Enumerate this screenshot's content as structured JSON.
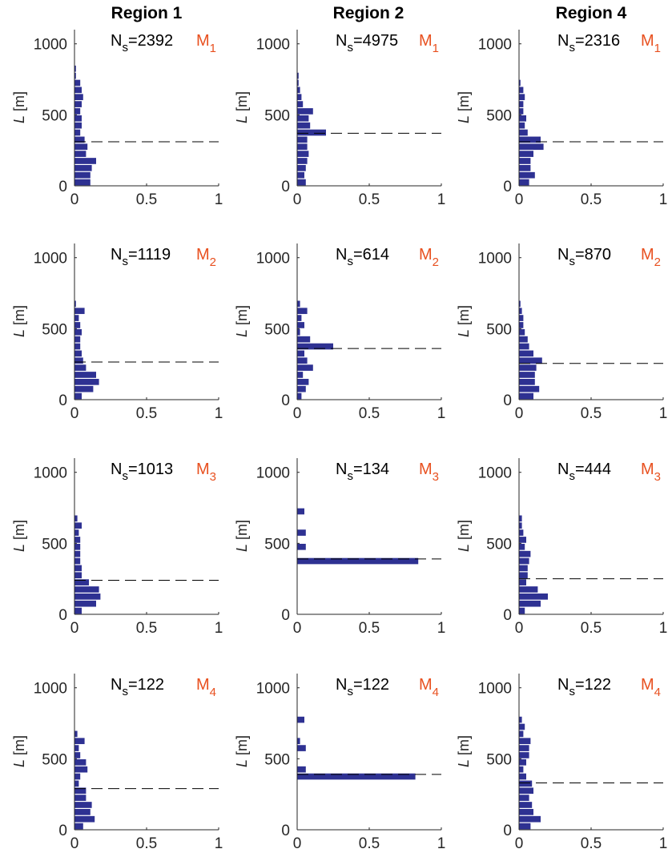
{
  "figure": {
    "column_titles": [
      "Region 1",
      "Region 2",
      "Region 4"
    ],
    "ylabel_var": "L",
    "ylabel_unit": " [m]",
    "ns_prefix": "N",
    "ns_sub": "s",
    "model_letter": "M",
    "colors": {
      "bars": "#2e3192",
      "model_label": "#e8501f",
      "dashed": "#000000",
      "axis": "#262626"
    }
  },
  "chart_data": [
    {
      "type": "bar",
      "orientation": "horizontal",
      "column": "Region 1",
      "model": "1",
      "ns": "=2392",
      "xlim": [
        0,
        1
      ],
      "ylim": [
        0,
        1100
      ],
      "xticks": [
        "0",
        "0.5",
        "1"
      ],
      "yticks": [
        "0",
        "500",
        "1000"
      ],
      "bin_width": 50,
      "threshold": 310,
      "values": [
        0.11,
        0.11,
        0.12,
        0.15,
        0.08,
        0.09,
        0.07,
        0.04,
        0.05,
        0.05,
        0.04,
        0.05,
        0.06,
        0.05,
        0.04,
        0.01,
        0.01,
        0.0,
        0.0,
        0.0,
        0.0,
        0.0
      ]
    },
    {
      "type": "bar",
      "orientation": "horizontal",
      "column": "Region 2",
      "model": "1",
      "ns": "=4975",
      "xlim": [
        0,
        1
      ],
      "ylim": [
        0,
        1100
      ],
      "xticks": [
        "0",
        "0.5",
        "1"
      ],
      "yticks": [
        "0",
        "500",
        "1000"
      ],
      "bin_width": 50,
      "threshold": 370,
      "values": [
        0.06,
        0.05,
        0.06,
        0.07,
        0.08,
        0.07,
        0.07,
        0.2,
        0.09,
        0.08,
        0.11,
        0.04,
        0.03,
        0.02,
        0.01,
        0.01,
        0.0,
        0.0,
        0.0,
        0.0,
        0.0,
        0.0
      ]
    },
    {
      "type": "bar",
      "orientation": "horizontal",
      "column": "Region 4",
      "model": "1",
      "ns": "=2316",
      "xlim": [
        0,
        1
      ],
      "ylim": [
        0,
        1100
      ],
      "xticks": [
        "0",
        "0.5",
        "1"
      ],
      "yticks": [
        "0",
        "500",
        "1000"
      ],
      "bin_width": 50,
      "threshold": 310,
      "values": [
        0.07,
        0.11,
        0.08,
        0.08,
        0.1,
        0.17,
        0.15,
        0.06,
        0.04,
        0.05,
        0.03,
        0.03,
        0.04,
        0.03,
        0.01,
        0.0,
        0.0,
        0.0,
        0.0,
        0.0,
        0.0,
        0.0
      ]
    },
    {
      "type": "bar",
      "orientation": "horizontal",
      "column": "Region 1",
      "model": "2",
      "ns": "=1119",
      "xlim": [
        0,
        1
      ],
      "ylim": [
        0,
        1100
      ],
      "xticks": [
        "0",
        "0.5",
        "1"
      ],
      "yticks": [
        "0",
        "500",
        "1000"
      ],
      "bin_width": 50,
      "threshold": 265,
      "values": [
        0.05,
        0.13,
        0.17,
        0.15,
        0.08,
        0.06,
        0.05,
        0.04,
        0.04,
        0.05,
        0.04,
        0.03,
        0.07,
        0.01,
        0.0,
        0.0,
        0.0,
        0.0,
        0.0,
        0.0,
        0.0,
        0.0
      ]
    },
    {
      "type": "bar",
      "orientation": "horizontal",
      "column": "Region 2",
      "model": "2",
      "ns": "=614",
      "xlim": [
        0,
        1
      ],
      "ylim": [
        0,
        1100
      ],
      "xticks": [
        "0",
        "0.5",
        "1"
      ],
      "yticks": [
        "0",
        "500",
        "1000"
      ],
      "bin_width": 50,
      "threshold": 360,
      "values": [
        0.03,
        0.06,
        0.08,
        0.04,
        0.11,
        0.07,
        0.05,
        0.25,
        0.09,
        0.02,
        0.05,
        0.03,
        0.07,
        0.02,
        0.0,
        0.0,
        0.0,
        0.0,
        0.0,
        0.0,
        0.0,
        0.0
      ]
    },
    {
      "type": "bar",
      "orientation": "horizontal",
      "column": "Region 4",
      "model": "2",
      "ns": "=870",
      "xlim": [
        0,
        1
      ],
      "ylim": [
        0,
        1100
      ],
      "xticks": [
        "0",
        "0.5",
        "1"
      ],
      "yticks": [
        "0",
        "500",
        "1000"
      ],
      "bin_width": 50,
      "threshold": 255,
      "values": [
        0.1,
        0.14,
        0.11,
        0.11,
        0.12,
        0.16,
        0.1,
        0.07,
        0.06,
        0.04,
        0.03,
        0.03,
        0.02,
        0.01,
        0.0,
        0.0,
        0.0,
        0.0,
        0.0,
        0.0,
        0.0,
        0.0
      ]
    },
    {
      "type": "bar",
      "orientation": "horizontal",
      "column": "Region 1",
      "model": "3",
      "ns": "=1013",
      "xlim": [
        0,
        1
      ],
      "ylim": [
        0,
        1100
      ],
      "xticks": [
        "0",
        "0.5",
        "1"
      ],
      "yticks": [
        "0",
        "500",
        "1000"
      ],
      "bin_width": 50,
      "threshold": 240,
      "values": [
        0.05,
        0.15,
        0.18,
        0.17,
        0.1,
        0.05,
        0.05,
        0.04,
        0.04,
        0.04,
        0.04,
        0.03,
        0.05,
        0.02,
        0.0,
        0.0,
        0.0,
        0.0,
        0.0,
        0.0,
        0.0,
        0.0
      ]
    },
    {
      "type": "bar",
      "orientation": "horizontal",
      "column": "Region 2",
      "model": "3",
      "ns": "=134",
      "xlim": [
        0,
        1
      ],
      "ylim": [
        0,
        1100
      ],
      "xticks": [
        "0",
        "0.5",
        "1"
      ],
      "yticks": [
        "0",
        "500",
        "1000"
      ],
      "bin_width": 50,
      "threshold": 390,
      "values": [
        0.0,
        0.0,
        0.0,
        0.0,
        0.0,
        0.0,
        0.0,
        0.84,
        0.0,
        0.06,
        0.0,
        0.06,
        0.0,
        0.0,
        0.05,
        0.0,
        0.0,
        0.0,
        0.0,
        0.0,
        0.0,
        0.0
      ]
    },
    {
      "type": "bar",
      "orientation": "horizontal",
      "column": "Region 4",
      "model": "3",
      "ns": "=444",
      "xlim": [
        0,
        1
      ],
      "ylim": [
        0,
        1100
      ],
      "xticks": [
        "0",
        "0.5",
        "1"
      ],
      "yticks": [
        "0",
        "500",
        "1000"
      ],
      "bin_width": 50,
      "threshold": 250,
      "values": [
        0.04,
        0.15,
        0.2,
        0.13,
        0.05,
        0.06,
        0.06,
        0.07,
        0.08,
        0.04,
        0.05,
        0.03,
        0.02,
        0.02,
        0.0,
        0.0,
        0.0,
        0.0,
        0.0,
        0.0,
        0.0,
        0.0
      ]
    },
    {
      "type": "bar",
      "orientation": "horizontal",
      "column": "Region 1",
      "model": "4",
      "ns": "=122",
      "xlim": [
        0,
        1
      ],
      "ylim": [
        0,
        1100
      ],
      "xticks": [
        "0",
        "0.5",
        "1"
      ],
      "yticks": [
        "0",
        "500",
        "1000"
      ],
      "bin_width": 50,
      "threshold": 290,
      "values": [
        0.06,
        0.14,
        0.11,
        0.12,
        0.08,
        0.08,
        0.03,
        0.04,
        0.09,
        0.08,
        0.04,
        0.03,
        0.07,
        0.02,
        0.0,
        0.0,
        0.0,
        0.0,
        0.0,
        0.0,
        0.0,
        0.0
      ]
    },
    {
      "type": "bar",
      "orientation": "horizontal",
      "column": "Region 2",
      "model": "4",
      "ns": "=122",
      "xlim": [
        0,
        1
      ],
      "ylim": [
        0,
        1100
      ],
      "xticks": [
        "0",
        "0.5",
        "1"
      ],
      "yticks": [
        "0",
        "500",
        "1000"
      ],
      "bin_width": 50,
      "threshold": 390,
      "values": [
        0.0,
        0.0,
        0.0,
        0.0,
        0.0,
        0.0,
        0.0,
        0.82,
        0.06,
        0.0,
        0.0,
        0.06,
        0.02,
        0.0,
        0.0,
        0.05,
        0.0,
        0.0,
        0.0,
        0.0,
        0.0,
        0.0
      ]
    },
    {
      "type": "bar",
      "orientation": "horizontal",
      "column": "Region 4",
      "model": "4",
      "ns": "=122",
      "xlim": [
        0,
        1
      ],
      "ylim": [
        0,
        1100
      ],
      "xticks": [
        "0",
        "0.5",
        "1"
      ],
      "yticks": [
        "0",
        "500",
        "1000"
      ],
      "bin_width": 50,
      "threshold": 330,
      "values": [
        0.08,
        0.15,
        0.1,
        0.09,
        0.07,
        0.1,
        0.09,
        0.05,
        0.03,
        0.05,
        0.07,
        0.07,
        0.08,
        0.03,
        0.04,
        0.02,
        0.0,
        0.0,
        0.0,
        0.0,
        0.0,
        0.0
      ]
    }
  ]
}
